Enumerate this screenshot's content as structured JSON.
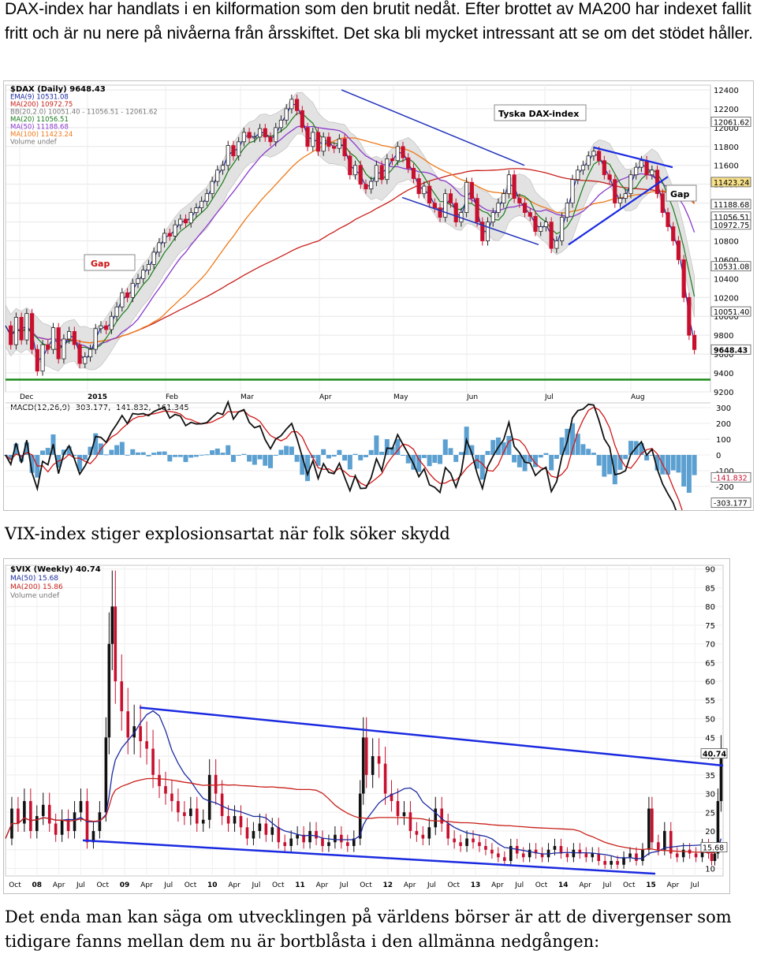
{
  "texts": {
    "dax_paragraph": "DAX-index har handlats i en kilformation som den brutit nedåt. Efter brottet av MA200 har indexet fallit fritt och är nu nere på nivåerna från årsskiftet. Det ska bli mycket intressant att se om det stödet håller.",
    "vix_heading": "VIX-index stiger explosionsartat när folk söker skydd",
    "bottom_paragraph": "Det enda man kan säga om utvecklingen på världens börser är att de divergenser som tidigare fanns mellan dem nu är bortblåsta i den allmänna nedgången:"
  },
  "chart_data": [
    {
      "type": "line",
      "title": "Tyska DAX-index",
      "legend": [
        "$DAX (Daily) 9648.43",
        "EMA(9) 10531.08",
        "MA(200) 10972.75",
        "BB(20,2.0) 10051.40 - 11056.51 - 12061.62",
        "MA(20) 11056.51",
        "MA(50) 11188.68",
        "MA(100) 11423.24",
        "Volume undef"
      ],
      "annotations": [
        "Gap",
        "Gap"
      ],
      "x_ticks": [
        "Dec",
        "2015",
        "Feb",
        "Mar",
        "Apr",
        "May",
        "Jun",
        "Jul",
        "Aug"
      ],
      "y_ticks": [
        12400,
        12200,
        12000,
        11800,
        11600,
        11400,
        11200,
        11000,
        10800,
        10600,
        10400,
        10200,
        10000,
        9800,
        9600,
        9400,
        9200
      ],
      "ylim": [
        9200,
        12450
      ],
      "value_tags": [
        {
          "value": 12061.62,
          "label": "12061.62",
          "color": "#ffffff"
        },
        {
          "value": 11423.24,
          "label": "11423.24",
          "color": "#f7e08a"
        },
        {
          "value": 11188.68,
          "label": "11188.68",
          "color": "#ffffff"
        },
        {
          "value": 11056.51,
          "label": "11056.51",
          "color": "#ffffff"
        },
        {
          "value": 10972.75,
          "label": "10972.75",
          "color": "#ffffff"
        },
        {
          "value": 10531.08,
          "label": "10531.08",
          "color": "#ffffff"
        },
        {
          "value": 10051.4,
          "label": "10051.40",
          "color": "#ffffff"
        },
        {
          "value": 9648.43,
          "label": "9648.43",
          "color": "#ffffff"
        }
      ],
      "price": [
        [
          0,
          9900
        ],
        [
          4,
          9700
        ],
        [
          8,
          9990
        ],
        [
          12,
          9750
        ],
        [
          16,
          10030
        ],
        [
          20,
          9650
        ],
        [
          24,
          9420
        ],
        [
          28,
          9700
        ],
        [
          32,
          9650
        ],
        [
          36,
          9880
        ],
        [
          40,
          9550
        ],
        [
          44,
          9760
        ],
        [
          48,
          9840
        ],
        [
          52,
          9700
        ],
        [
          56,
          9500
        ],
        [
          60,
          9570
        ],
        [
          64,
          9650
        ],
        [
          68,
          9870
        ],
        [
          72,
          9900
        ],
        [
          76,
          9860
        ],
        [
          80,
          10000
        ],
        [
          84,
          10100
        ],
        [
          88,
          10250
        ],
        [
          92,
          10200
        ],
        [
          96,
          10350
        ],
        [
          100,
          10400
        ],
        [
          104,
          10490
        ],
        [
          108,
          10550
        ],
        [
          112,
          10680
        ],
        [
          116,
          10780
        ],
        [
          120,
          10880
        ],
        [
          124,
          10850
        ],
        [
          128,
          10970
        ],
        [
          132,
          11030
        ],
        [
          136,
          10990
        ],
        [
          140,
          11100
        ],
        [
          144,
          11150
        ],
        [
          148,
          11220
        ],
        [
          152,
          11300
        ],
        [
          156,
          11430
        ],
        [
          160,
          11550
        ],
        [
          164,
          11600
        ],
        [
          168,
          11810
        ],
        [
          172,
          11700
        ],
        [
          176,
          11850
        ],
        [
          180,
          11950
        ],
        [
          184,
          11890
        ],
        [
          188,
          11900
        ],
        [
          192,
          11990
        ],
        [
          196,
          11900
        ],
        [
          200,
          11850
        ],
        [
          204,
          12000
        ],
        [
          208,
          12080
        ],
        [
          212,
          12200
        ],
        [
          216,
          12300
        ],
        [
          220,
          12180
        ],
        [
          224,
          12000
        ],
        [
          228,
          11800
        ],
        [
          232,
          11950
        ],
        [
          236,
          11750
        ],
        [
          240,
          11900
        ],
        [
          244,
          11800
        ],
        [
          248,
          11780
        ],
        [
          252,
          11880
        ],
        [
          256,
          11700
        ],
        [
          260,
          11500
        ],
        [
          264,
          11600
        ],
        [
          268,
          11400
        ],
        [
          272,
          11350
        ],
        [
          276,
          11430
        ],
        [
          280,
          11600
        ],
        [
          284,
          11450
        ],
        [
          288,
          11670
        ],
        [
          292,
          11650
        ],
        [
          296,
          11800
        ],
        [
          300,
          11680
        ],
        [
          304,
          11570
        ],
        [
          308,
          11460
        ],
        [
          312,
          11300
        ],
        [
          316,
          11380
        ],
        [
          320,
          11200
        ],
        [
          324,
          11150
        ],
        [
          328,
          11050
        ],
        [
          332,
          11300
        ],
        [
          336,
          11200
        ],
        [
          340,
          11000
        ],
        [
          344,
          11100
        ],
        [
          348,
          11420
        ],
        [
          352,
          11250
        ],
        [
          356,
          11000
        ],
        [
          360,
          10800
        ],
        [
          364,
          11000
        ],
        [
          368,
          11100
        ],
        [
          372,
          11200
        ],
        [
          376,
          11300
        ],
        [
          380,
          11500
        ],
        [
          384,
          11250
        ],
        [
          388,
          11200
        ],
        [
          392,
          11100
        ],
        [
          396,
          11060
        ],
        [
          400,
          10900
        ],
        [
          404,
          10950
        ],
        [
          408,
          11000
        ],
        [
          412,
          10720
        ],
        [
          416,
          10800
        ],
        [
          420,
          11050
        ],
        [
          424,
          11200
        ],
        [
          428,
          11450
        ],
        [
          432,
          11550
        ],
        [
          436,
          11600
        ],
        [
          440,
          11700
        ],
        [
          444,
          11750
        ],
        [
          448,
          11650
        ],
        [
          452,
          11500
        ],
        [
          456,
          11450
        ],
        [
          460,
          11200
        ],
        [
          464,
          11250
        ],
        [
          468,
          11300
        ],
        [
          472,
          11500
        ],
        [
          476,
          11580
        ],
        [
          480,
          11650
        ],
        [
          484,
          11500
        ],
        [
          488,
          11550
        ],
        [
          492,
          11300
        ],
        [
          496,
          11100
        ],
        [
          500,
          10950
        ],
        [
          504,
          10800
        ],
        [
          508,
          10600
        ],
        [
          512,
          10200
        ],
        [
          516,
          9800
        ],
        [
          520,
          9648.43
        ]
      ],
      "macd_legend": "MACD(12,26,9) -303.177, -141.832, -161.345",
      "macd_ticks": [
        300,
        200,
        100,
        0,
        -100,
        -200
      ],
      "macd_ylim": [
        -330,
        330
      ],
      "macd_tags": [
        {
          "value": -141.832,
          "label": "-141.832"
        },
        {
          "value": -303.177,
          "label": "-303.177"
        }
      ]
    },
    {
      "type": "line",
      "title": "",
      "legend": [
        "$VIX (Weekly) 40.74",
        "MA(50) 15.68",
        "MA(200) 15.86",
        "Volume undef"
      ],
      "x_ticks": [
        "Oct",
        "08",
        "Apr",
        "Jul",
        "Oct",
        "09",
        "Apr",
        "Jul",
        "Oct",
        "10",
        "Apr",
        "Jul",
        "Oct",
        "11",
        "Apr",
        "Jul",
        "Oct",
        "12",
        "Apr",
        "Jul",
        "Oct",
        "13",
        "Apr",
        "Jul",
        "Oct",
        "14",
        "Apr",
        "Jul",
        "Oct",
        "15",
        "Apr",
        "Jul"
      ],
      "y_ticks": [
        90,
        85,
        80,
        75,
        70,
        65,
        60,
        55,
        50,
        45,
        40,
        35,
        30,
        25,
        20,
        15,
        10
      ],
      "ylim": [
        8,
        91
      ],
      "value_tags": [
        {
          "value": 40.74,
          "label": "40.74"
        },
        {
          "value": 15.68,
          "label": "15.68"
        }
      ],
      "price": [
        [
          0,
          18
        ],
        [
          8,
          26
        ],
        [
          16,
          22
        ],
        [
          24,
          28
        ],
        [
          32,
          20
        ],
        [
          40,
          24
        ],
        [
          48,
          27
        ],
        [
          56,
          22
        ],
        [
          64,
          19
        ],
        [
          72,
          23
        ],
        [
          80,
          20
        ],
        [
          88,
          25
        ],
        [
          96,
          28
        ],
        [
          104,
          17
        ],
        [
          112,
          20
        ],
        [
          120,
          25
        ],
        [
          128,
          45
        ],
        [
          132,
          70
        ],
        [
          136,
          80
        ],
        [
          140,
          60
        ],
        [
          148,
          52
        ],
        [
          156,
          45
        ],
        [
          164,
          48
        ],
        [
          172,
          44
        ],
        [
          180,
          42
        ],
        [
          188,
          35
        ],
        [
          196,
          32
        ],
        [
          204,
          30
        ],
        [
          212,
          28
        ],
        [
          220,
          25
        ],
        [
          228,
          24
        ],
        [
          236,
          26
        ],
        [
          244,
          22
        ],
        [
          252,
          23
        ],
        [
          260,
          35
        ],
        [
          268,
          30
        ],
        [
          276,
          24
        ],
        [
          284,
          22
        ],
        [
          292,
          24
        ],
        [
          300,
          21
        ],
        [
          308,
          18
        ],
        [
          316,
          20
        ],
        [
          324,
          22
        ],
        [
          332,
          19
        ],
        [
          340,
          21
        ],
        [
          348,
          17
        ],
        [
          356,
          16
        ],
        [
          364,
          18
        ],
        [
          372,
          19
        ],
        [
          380,
          17
        ],
        [
          388,
          20
        ],
        [
          396,
          18
        ],
        [
          404,
          16
        ],
        [
          412,
          17
        ],
        [
          420,
          19
        ],
        [
          428,
          17
        ],
        [
          436,
          16
        ],
        [
          444,
          18
        ],
        [
          452,
          30
        ],
        [
          456,
          45
        ],
        [
          460,
          35
        ],
        [
          468,
          40
        ],
        [
          476,
          38
        ],
        [
          484,
          30
        ],
        [
          492,
          28
        ],
        [
          500,
          24
        ],
        [
          508,
          25
        ],
        [
          516,
          20
        ],
        [
          524,
          19
        ],
        [
          532,
          18
        ],
        [
          540,
          21
        ],
        [
          548,
          26
        ],
        [
          556,
          22
        ],
        [
          564,
          18
        ],
        [
          572,
          17
        ],
        [
          580,
          16
        ],
        [
          588,
          18
        ],
        [
          596,
          17
        ],
        [
          604,
          16
        ],
        [
          612,
          15
        ],
        [
          620,
          14
        ],
        [
          628,
          13
        ],
        [
          636,
          12
        ],
        [
          644,
          16
        ],
        [
          652,
          14
        ],
        [
          660,
          13
        ],
        [
          668,
          15
        ],
        [
          676,
          14
        ],
        [
          684,
          13
        ],
        [
          692,
          15
        ],
        [
          700,
          16
        ],
        [
          708,
          14
        ],
        [
          716,
          13
        ],
        [
          724,
          15
        ],
        [
          732,
          14
        ],
        [
          740,
          13
        ],
        [
          748,
          14
        ],
        [
          756,
          12
        ],
        [
          764,
          11
        ],
        [
          772,
          12
        ],
        [
          780,
          11
        ],
        [
          788,
          13
        ],
        [
          796,
          14
        ],
        [
          804,
          12
        ],
        [
          812,
          15
        ],
        [
          820,
          26
        ],
        [
          824,
          17
        ],
        [
          832,
          15
        ],
        [
          840,
          20
        ],
        [
          848,
          14
        ],
        [
          856,
          13
        ],
        [
          864,
          15
        ],
        [
          872,
          14
        ],
        [
          880,
          13
        ],
        [
          888,
          16
        ],
        [
          896,
          14
        ],
        [
          900,
          12
        ],
        [
          904,
          14
        ],
        [
          908,
          28
        ],
        [
          912,
          40.74
        ]
      ]
    }
  ]
}
